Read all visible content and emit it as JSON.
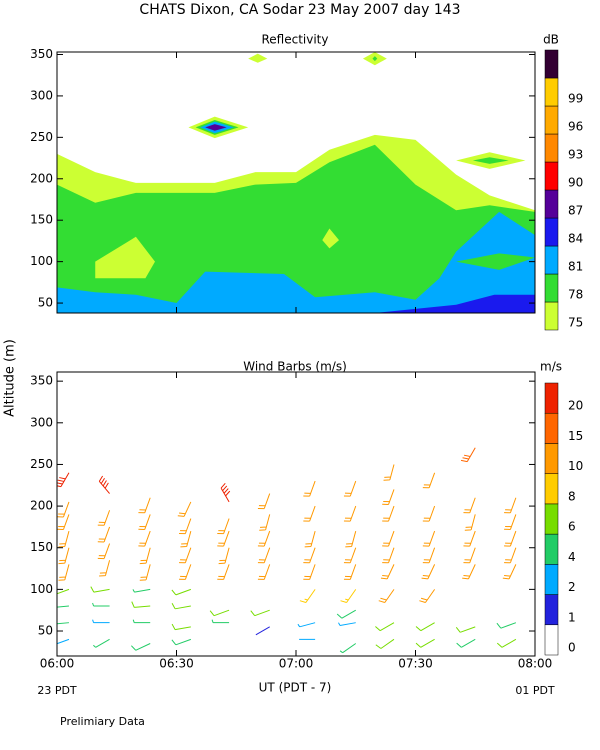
{
  "title": "CHATS Dixon, CA  Sodar  23 May 2007  day 143",
  "y_label": "Altitude (m)",
  "x_label": "UT  (PDT - 7)",
  "x_start_note": "23 PDT",
  "x_end_note": "01 PDT",
  "footnote": "Prelimiary Data",
  "chart_data": [
    {
      "type": "contour",
      "title": "Reflectivity",
      "colorbar_label": "dB",
      "levels": [
        75,
        78,
        81,
        84,
        87,
        90,
        93,
        96,
        99
      ],
      "colors": [
        "#ccff33",
        "#33dd33",
        "#00aaff",
        "#1a1aee",
        "#550099",
        "#ff0000",
        "#ff8800",
        "#ffaa00",
        "#ffcc00",
        "#330033"
      ],
      "xlim": [
        6,
        8
      ],
      "xticks": [
        6,
        6.5,
        7,
        7.5,
        8
      ],
      "xtick_labels": false,
      "ylim": [
        38,
        353
      ],
      "yticks": [
        50,
        100,
        150,
        200,
        250,
        300,
        350
      ],
      "regions": [
        {
          "level": 75,
          "x": [
            6,
            6,
            6.16,
            6.33,
            6.66,
            6.83,
            7,
            7.14,
            7.33,
            7.5,
            7.67,
            7.81,
            8,
            8
          ],
          "y": [
            38,
            230,
            208,
            195,
            195,
            208,
            208,
            235,
            253,
            247,
            205,
            180,
            162,
            38
          ]
        },
        {
          "level": 78,
          "x": [
            6,
            6,
            6.16,
            6.33,
            6.66,
            6.83,
            7,
            7.14,
            7.33,
            7.5,
            7.67,
            7.81,
            8,
            8
          ],
          "y": [
            38,
            193,
            171,
            183,
            183,
            193,
            195,
            220,
            241,
            193,
            162,
            168,
            160,
            38
          ]
        },
        {
          "level": 81,
          "x": [
            6,
            6,
            6.16,
            6.33,
            6.5,
            6.62,
            6.95,
            7.08,
            7.33,
            7.5,
            7.6,
            7.67,
            7.85,
            8,
            8
          ],
          "y": [
            38,
            69,
            63,
            60,
            50,
            88,
            85,
            57,
            63,
            54,
            80,
            112,
            160,
            132,
            38
          ]
        },
        {
          "level": 78,
          "x": [
            7.67,
            7.85,
            8,
            7.85
          ],
          "y": [
            100,
            110,
            105,
            90
          ]
        },
        {
          "level": 84,
          "x": [
            7.33,
            7.67,
            7.83,
            8,
            8
          ],
          "y": [
            38,
            48,
            60,
            60,
            38
          ]
        },
        {
          "level": 75,
          "x": [
            6.16,
            6.33,
            6.41,
            6.37,
            6.16
          ],
          "y": [
            100,
            130,
            100,
            80,
            80
          ]
        },
        {
          "level": 75,
          "x": [
            7.14,
            7.18,
            7.14,
            7.11
          ],
          "y": [
            140,
            126,
            116,
            126
          ]
        },
        {
          "level": 75,
          "x": [
            6.55,
            6.66,
            6.8,
            6.66
          ],
          "y": [
            262,
            275,
            262,
            249
          ]
        },
        {
          "level": 78,
          "x": [
            6.58,
            6.66,
            6.76,
            6.66
          ],
          "y": [
            262,
            271,
            262,
            253
          ]
        },
        {
          "level": 81,
          "x": [
            6.6,
            6.66,
            6.74,
            6.66
          ],
          "y": [
            262,
            269,
            262,
            255
          ]
        },
        {
          "level": 87,
          "x": [
            6.62,
            6.66,
            6.71,
            6.66
          ],
          "y": [
            262,
            266,
            262,
            258
          ]
        },
        {
          "level": 75,
          "x": [
            6.8,
            6.84,
            6.88,
            6.84
          ],
          "y": [
            345,
            351,
            345,
            340
          ]
        },
        {
          "level": 75,
          "x": [
            7.28,
            7.33,
            7.38,
            7.33
          ],
          "y": [
            345,
            353,
            345,
            337
          ]
        },
        {
          "level": 78,
          "x": [
            7.32,
            7.33,
            7.34,
            7.33
          ],
          "y": [
            345,
            348,
            345,
            342
          ]
        },
        {
          "level": 75,
          "x": [
            7.67,
            7.81,
            7.96,
            7.81
          ],
          "y": [
            222,
            232,
            222,
            212
          ]
        },
        {
          "level": 78,
          "x": [
            7.74,
            7.81,
            7.89,
            7.81
          ],
          "y": [
            222,
            226,
            222,
            218
          ]
        }
      ]
    },
    {
      "type": "barbs",
      "title": "Wind Barbs (m/s)",
      "colorbar_label": "m/s",
      "levels": [
        0,
        1,
        2,
        4,
        6,
        8,
        10,
        15,
        20
      ],
      "colors": [
        "#ffffff",
        "#2222dd",
        "#00aaff",
        "#22cc66",
        "#77dd00",
        "#ffcc00",
        "#ff9900",
        "#ff6600",
        "#ee2200"
      ],
      "xlim": [
        6,
        8
      ],
      "xticks": [
        {
          "value": 6,
          "label": "06:00"
        },
        {
          "value": 6.5,
          "label": "06:30"
        },
        {
          "value": 7,
          "label": "07:00"
        },
        {
          "value": 7.5,
          "label": "07:30"
        },
        {
          "value": 8,
          "label": "08:00"
        }
      ],
      "ylim": [
        20,
        361
      ],
      "yticks": [
        50,
        100,
        150,
        200,
        250,
        300,
        350
      ],
      "columns": [
        {
          "x": 6.05,
          "alt": [
            40,
            60,
            80,
            100,
            130,
            150,
            170,
            190,
            205,
            240
          ],
          "speed": [
            3,
            4,
            5,
            7,
            11,
            11,
            12,
            12,
            12,
            20
          ],
          "dir": [
            250,
            265,
            265,
            250,
            195,
            195,
            195,
            200,
            200,
            210
          ]
        },
        {
          "x": 6.22,
          "alt": [
            40,
            60,
            80,
            100,
            135,
            155,
            175,
            195,
            215
          ],
          "speed": [
            4,
            3,
            4,
            7,
            11,
            11,
            11,
            12,
            20
          ],
          "dir": [
            240,
            270,
            270,
            260,
            195,
            200,
            200,
            200,
            320
          ]
        },
        {
          "x": 6.39,
          "alt": [
            35,
            60,
            80,
            100,
            130,
            150,
            170,
            190,
            210
          ],
          "speed": [
            5,
            4,
            7,
            4,
            11,
            11,
            11,
            12,
            11
          ],
          "dir": [
            245,
            270,
            265,
            260,
            195,
            195,
            200,
            200,
            200
          ]
        },
        {
          "x": 6.56,
          "alt": [
            40,
            55,
            80,
            100,
            130,
            150,
            170,
            185,
            205
          ],
          "speed": [
            5,
            6,
            7,
            7,
            12,
            11,
            11,
            12,
            11
          ],
          "dir": [
            250,
            260,
            260,
            250,
            200,
            200,
            195,
            200,
            205
          ]
        },
        {
          "x": 6.72,
          "alt": [
            60,
            75,
            130,
            150,
            170,
            185,
            205
          ],
          "speed": [
            4,
            7,
            11,
            11,
            11,
            11,
            20
          ],
          "dir": [
            270,
            250,
            200,
            195,
            200,
            200,
            330
          ]
        },
        {
          "x": 6.89,
          "alt": [
            55,
            75,
            130,
            150,
            170,
            190,
            215
          ],
          "speed": [
            1,
            7,
            11,
            11,
            11,
            11,
            11
          ],
          "dir": [
            240,
            250,
            200,
            200,
            200,
            195,
            200
          ]
        },
        {
          "x": 7.08,
          "alt": [
            40,
            60,
            100,
            130,
            150,
            170,
            200,
            230
          ],
          "speed": [
            2,
            3,
            9,
            11,
            11,
            11,
            11,
            11
          ],
          "dir": [
            270,
            255,
            215,
            200,
            200,
            195,
            200,
            200
          ]
        },
        {
          "x": 7.25,
          "alt": [
            35,
            60,
            75,
            100,
            130,
            150,
            170,
            200,
            230
          ],
          "speed": [
            4,
            3,
            5,
            9,
            11,
            11,
            11,
            11,
            11
          ],
          "dir": [
            235,
            260,
            240,
            215,
            200,
            200,
            195,
            200,
            200
          ]
        },
        {
          "x": 7.41,
          "alt": [
            40,
            60,
            100,
            130,
            150,
            170,
            200,
            220,
            250
          ],
          "speed": [
            6,
            6,
            10,
            11,
            11,
            11,
            11,
            11,
            11
          ],
          "dir": [
            235,
            240,
            215,
            205,
            200,
            200,
            200,
            200,
            195
          ]
        },
        {
          "x": 7.58,
          "alt": [
            40,
            60,
            100,
            130,
            150,
            170,
            200,
            240
          ],
          "speed": [
            6,
            6,
            10,
            11,
            11,
            11,
            11,
            11
          ],
          "dir": [
            240,
            240,
            215,
            205,
            200,
            200,
            200,
            200
          ]
        },
        {
          "x": 7.75,
          "alt": [
            40,
            55,
            130,
            150,
            170,
            190,
            210,
            270
          ],
          "speed": [
            5,
            6,
            11,
            11,
            11,
            11,
            11,
            16
          ],
          "dir": [
            240,
            250,
            205,
            200,
            200,
            195,
            200,
            210
          ]
        },
        {
          "x": 7.92,
          "alt": [
            40,
            60,
            130,
            150,
            170,
            190,
            210
          ],
          "speed": [
            6,
            5,
            11,
            11,
            11,
            11,
            11
          ],
          "dir": [
            240,
            250,
            205,
            200,
            200,
            200,
            200
          ]
        }
      ]
    }
  ]
}
